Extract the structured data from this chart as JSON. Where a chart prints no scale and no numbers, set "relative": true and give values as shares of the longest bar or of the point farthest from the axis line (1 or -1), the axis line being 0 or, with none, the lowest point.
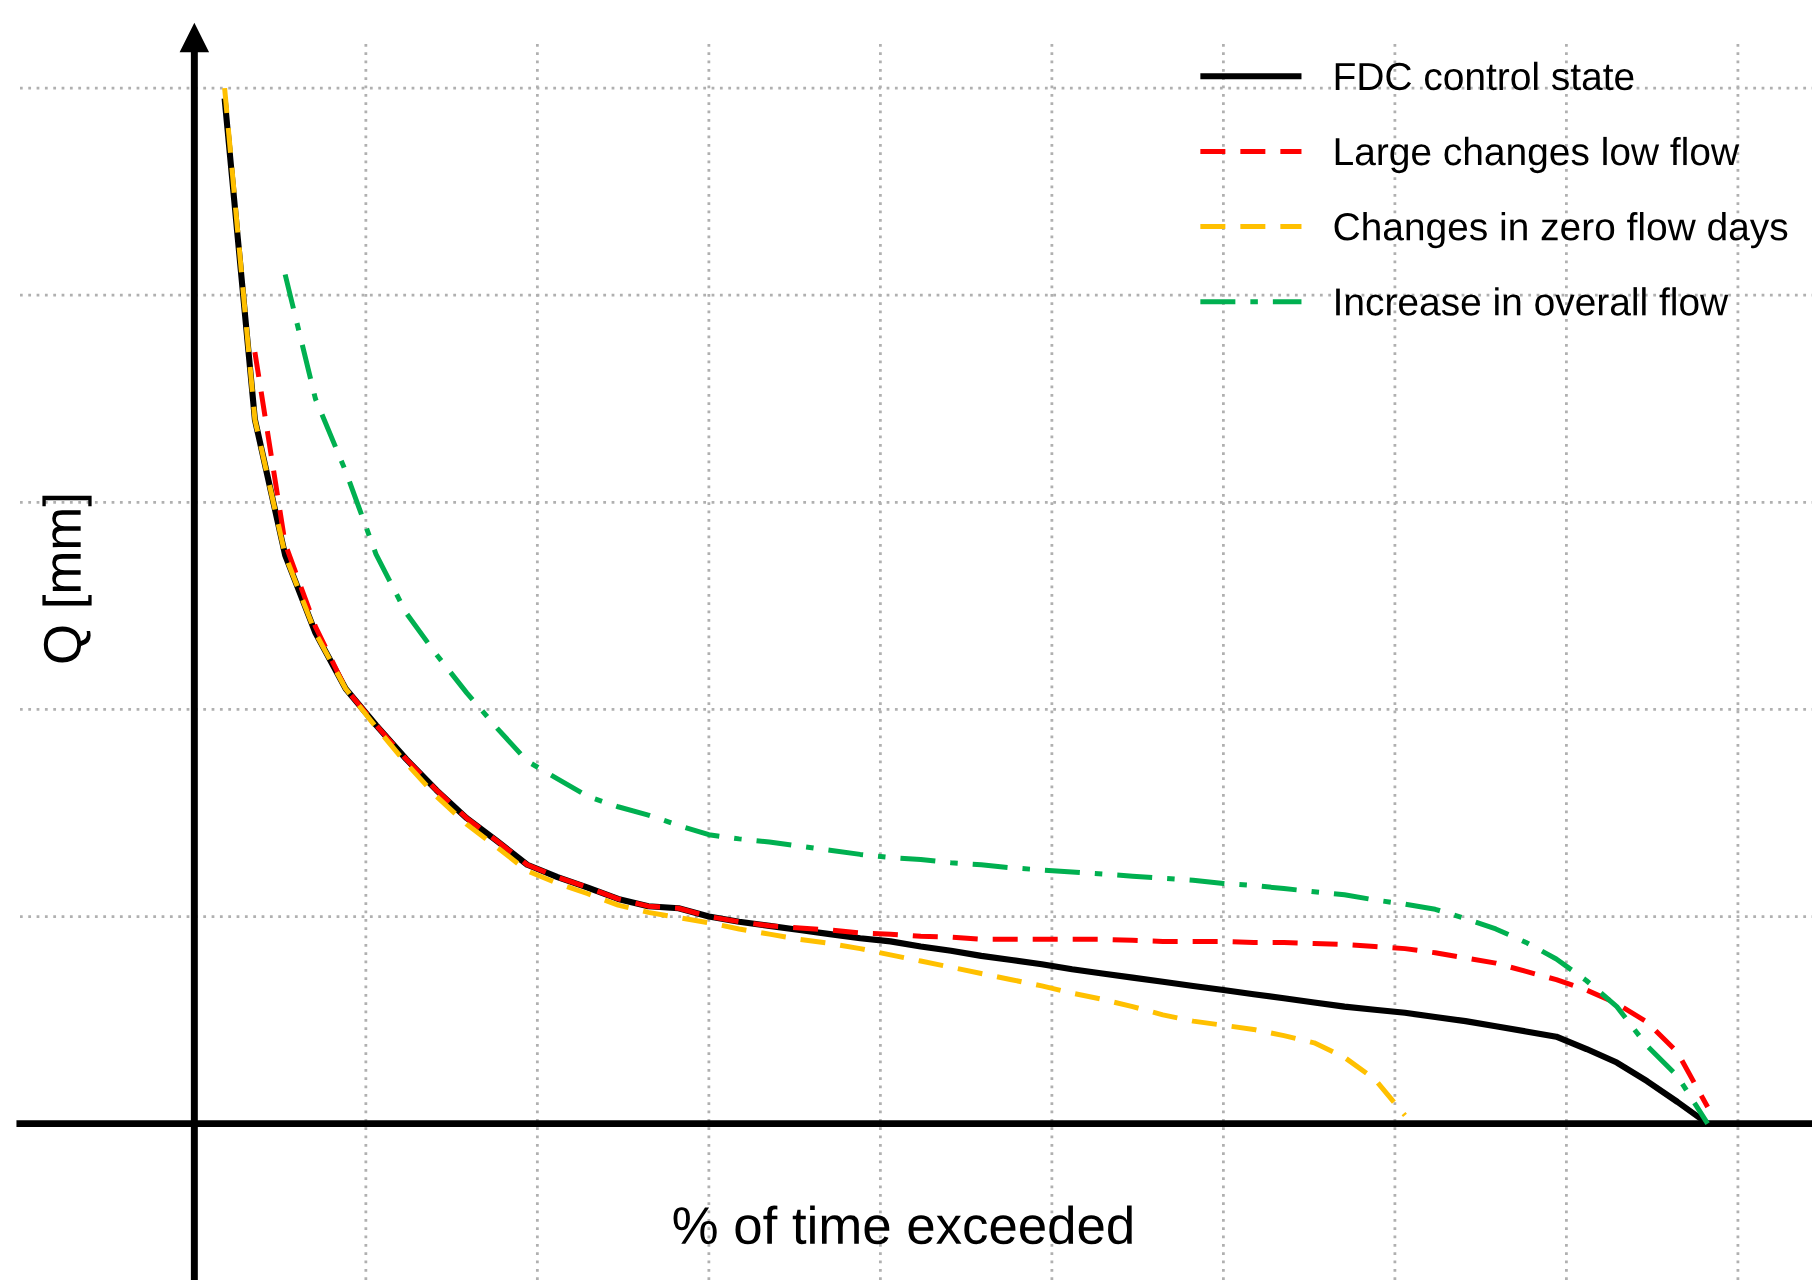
{
  "chart_data": {
    "type": "line",
    "relative": true,
    "xlabel": "% of time exceeded",
    "ylabel": "Q [mm]",
    "categories": [
      null,
      null,
      null,
      null,
      null,
      null,
      null,
      null,
      null,
      null,
      null,
      null,
      null,
      null,
      null,
      null,
      null,
      null,
      null,
      null,
      null,
      null,
      null,
      null,
      null,
      null,
      null,
      null,
      null,
      null,
      null,
      null,
      null,
      null,
      null,
      null,
      null,
      null,
      null,
      null,
      null,
      null,
      null,
      null,
      null,
      null,
      null,
      null,
      null,
      null
    ],
    "grid": true,
    "legend": "top right",
    "marker": "none",
    "series": [
      {
        "name": "FDC control state",
        "color": "#000000",
        "line_style": "solid",
        "values": [
          0.99,
          0.68,
          0.549,
          0.474,
          0.42,
          0.385,
          0.352,
          0.322,
          0.295,
          0.273,
          0.25,
          0.238,
          0.228,
          0.217,
          0.21,
          0.208,
          0.2,
          0.195,
          0.191,
          0.187,
          0.183,
          0.179,
          0.176,
          0.171,
          0.167,
          0.162,
          0.158,
          0.154,
          0.149,
          0.145,
          0.141,
          0.137,
          0.133,
          0.129,
          0.125,
          0.121,
          0.117,
          0.113,
          0.11,
          0.107,
          0.103,
          0.099,
          0.094,
          0.089,
          0.084,
          0.072,
          0.059,
          0.041,
          0.021,
          0
        ]
      },
      {
        "name": "Large changes low flow",
        "color": "#ff0000",
        "line_style": "dashed",
        "values": [
          null,
          0.745,
          0.56,
          0.48,
          0.42,
          0.385,
          0.352,
          0.322,
          0.295,
          0.273,
          0.25,
          0.238,
          0.228,
          0.217,
          0.21,
          0.208,
          0.2,
          0.195,
          0.191,
          0.189,
          0.187,
          0.184,
          0.183,
          0.181,
          0.18,
          0.178,
          0.178,
          0.178,
          0.178,
          0.178,
          0.177,
          0.176,
          0.176,
          0.176,
          0.175,
          0.175,
          0.174,
          0.173,
          0.171,
          0.169,
          0.165,
          0.16,
          0.155,
          0.147,
          0.139,
          0.129,
          0.116,
          0.098,
          0.069,
          0.016
        ]
      },
      {
        "name": "Changes in zero flow days",
        "color": "#ffc000",
        "line_style": "dashed",
        "values": [
          1.0,
          0.68,
          0.549,
          0.474,
          0.42,
          0.383,
          0.348,
          0.316,
          0.289,
          0.267,
          0.244,
          0.232,
          0.222,
          0.211,
          0.204,
          0.199,
          0.194,
          0.188,
          0.183,
          0.178,
          0.174,
          0.169,
          0.163,
          0.157,
          0.151,
          0.145,
          0.139,
          0.133,
          0.126,
          0.12,
          0.113,
          0.105,
          0.099,
          0.095,
          0.091,
          0.085,
          0.078,
          0.064,
          0.043,
          0.008,
          null,
          null,
          null,
          null,
          null,
          null,
          null,
          null,
          null,
          null
        ]
      },
      {
        "name": "Increase in overall flow",
        "color": "#00b050",
        "line_style": "dashdot",
        "values": [
          null,
          null,
          0.82,
          0.7,
          0.63,
          0.55,
          0.493,
          0.453,
          0.416,
          0.382,
          0.35,
          0.333,
          0.316,
          0.306,
          0.298,
          0.288,
          0.279,
          0.275,
          0.272,
          0.268,
          0.264,
          0.26,
          0.257,
          0.255,
          0.252,
          0.25,
          0.247,
          0.245,
          0.243,
          0.241,
          0.239,
          0.237,
          0.235,
          0.232,
          0.23,
          0.227,
          0.224,
          0.221,
          0.216,
          0.212,
          0.207,
          0.198,
          0.188,
          0.175,
          0.159,
          0.138,
          0.113,
          0.075,
          0.046,
          0.0
        ]
      }
    ]
  }
}
